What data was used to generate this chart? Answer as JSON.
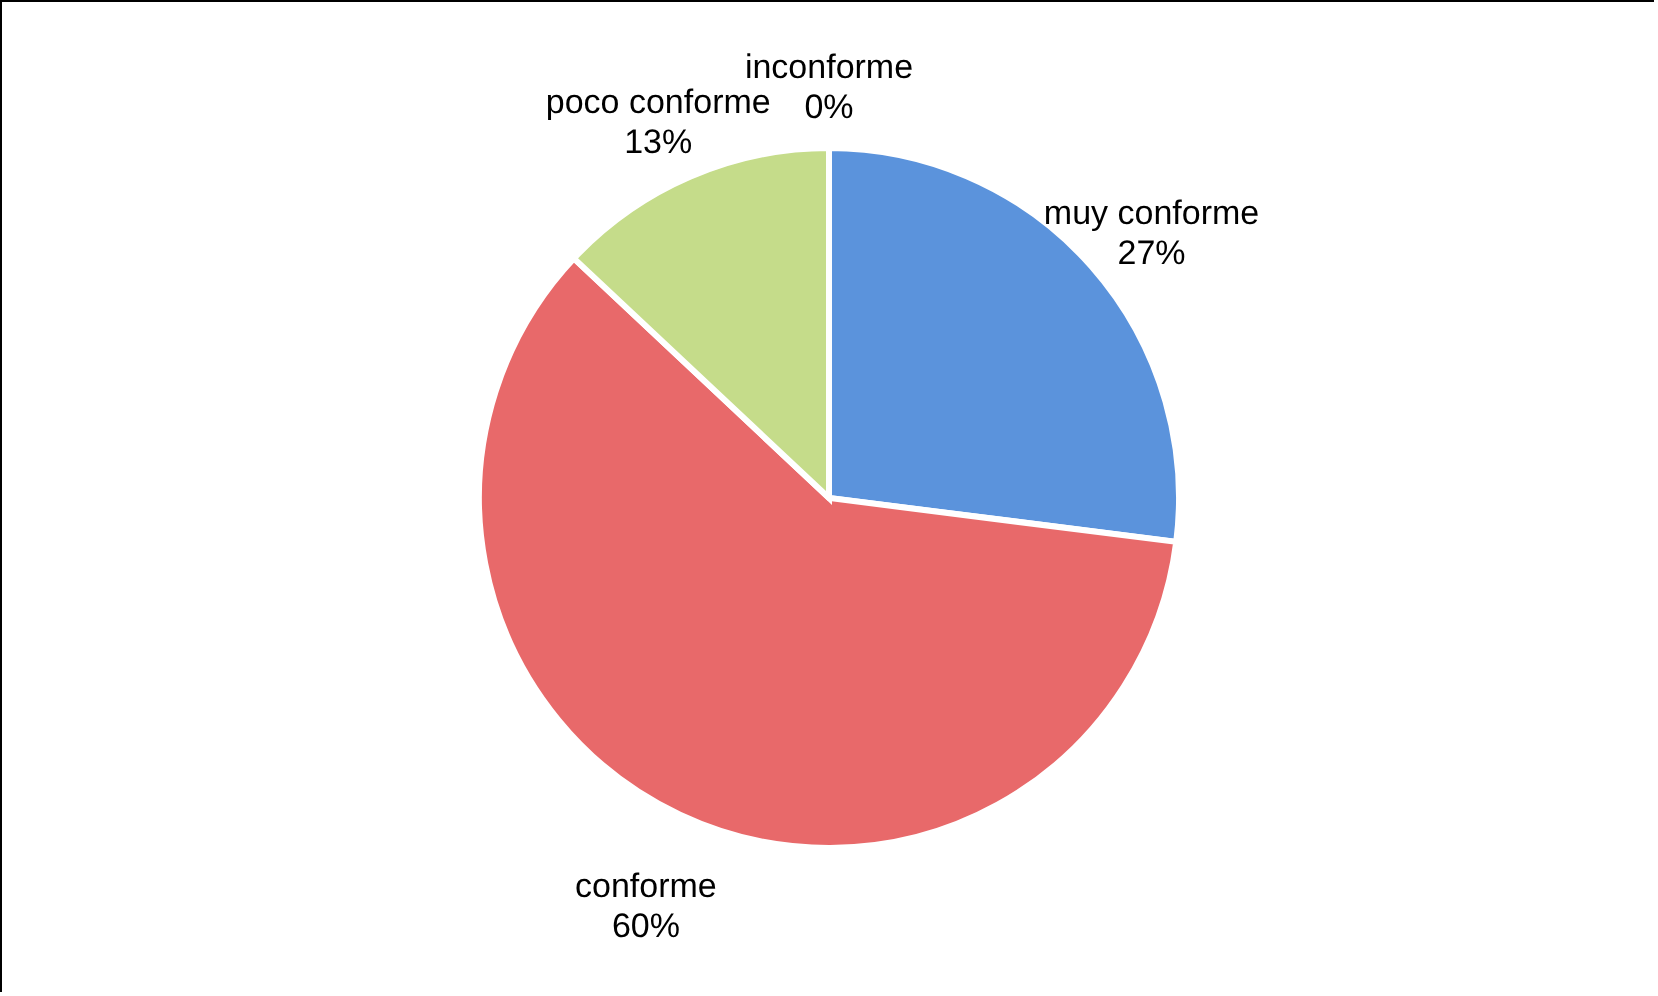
{
  "chart_data": {
    "type": "pie",
    "categories": [
      "muy conforme",
      "conforme",
      "poco conforme",
      "inconforme"
    ],
    "values": [
      27,
      60,
      13,
      0
    ],
    "colors": [
      "#5b93dc",
      "#e8696a",
      "#c5dc8a",
      "#8064a2"
    ],
    "value_labels": [
      "27%",
      "60%",
      "13%",
      "0%"
    ]
  }
}
